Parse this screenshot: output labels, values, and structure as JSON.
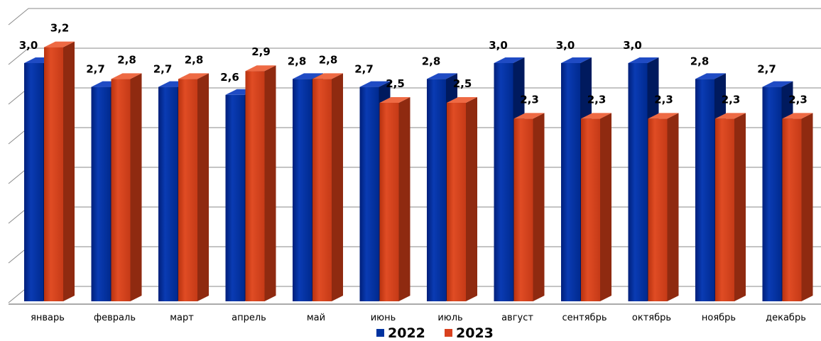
{
  "chart_data": {
    "type": "bar",
    "title": "…",
    "categories": [
      "январь",
      "февраль",
      "март",
      "апрель",
      "май",
      "июнь",
      "июль",
      "август",
      "сентябрь",
      "октябрь",
      "ноябрь",
      "декабрь"
    ],
    "series": [
      {
        "name": "2022",
        "values": [
          3.0,
          2.7,
          2.7,
          2.6,
          2.8,
          2.7,
          2.8,
          3.0,
          3.0,
          3.0,
          2.8,
          2.7
        ],
        "labels": [
          "3,0",
          "2,7",
          "2,7",
          "2,6",
          "2,8",
          "2,7",
          "2,8",
          "3,0",
          "3,0",
          "3,0",
          "2,8",
          "2,7"
        ],
        "color": "#0033A0"
      },
      {
        "name": "2023",
        "values": [
          3.2,
          2.8,
          2.8,
          2.9,
          2.8,
          2.5,
          2.5,
          2.3,
          2.3,
          2.3,
          2.3,
          2.3
        ],
        "labels": [
          "3,2",
          "2,8",
          "2,8",
          "2,9",
          "2,8",
          "2,5",
          "2,5",
          "2,3",
          "2,3",
          "2,3",
          "2,3",
          "2,3"
        ],
        "color": "#D9411E"
      }
    ],
    "ylim": [
      0,
      3.5
    ],
    "grid": true,
    "legend": "bottom",
    "three_d": true
  }
}
